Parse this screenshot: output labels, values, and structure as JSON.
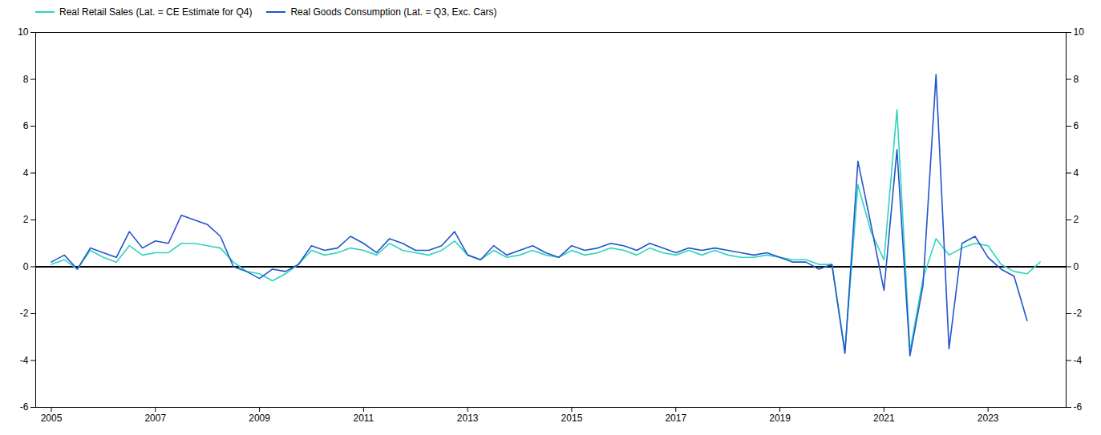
{
  "chart_data": {
    "type": "line",
    "x": [
      2005.0,
      2005.25,
      2005.5,
      2005.75,
      2006.0,
      2006.25,
      2006.5,
      2006.75,
      2007.0,
      2007.25,
      2007.5,
      2007.75,
      2008.0,
      2008.25,
      2008.5,
      2008.75,
      2009.0,
      2009.25,
      2009.5,
      2009.75,
      2010.0,
      2010.25,
      2010.5,
      2010.75,
      2011.0,
      2011.25,
      2011.5,
      2011.75,
      2012.0,
      2012.25,
      2012.5,
      2012.75,
      2013.0,
      2013.25,
      2013.5,
      2013.75,
      2014.0,
      2014.25,
      2014.5,
      2014.75,
      2015.0,
      2015.25,
      2015.5,
      2015.75,
      2016.0,
      2016.25,
      2016.5,
      2016.75,
      2017.0,
      2017.25,
      2017.5,
      2017.75,
      2018.0,
      2018.25,
      2018.5,
      2018.75,
      2019.0,
      2019.25,
      2019.5,
      2019.75,
      2020.0,
      2020.25,
      2020.5,
      2020.75,
      2021.0,
      2021.25,
      2021.5,
      2021.75,
      2022.0,
      2022.25,
      2022.5,
      2022.75,
      2023.0,
      2023.25,
      2023.5,
      2023.75,
      2024.0
    ],
    "series": [
      {
        "name": "Real Retail Sales (Lat. = CE Estimate for Q4)",
        "color": "#2DD4BF",
        "values": [
          0.1,
          0.3,
          -0.1,
          0.7,
          0.4,
          0.2,
          0.9,
          0.5,
          0.6,
          0.6,
          1.0,
          1.0,
          0.9,
          0.8,
          0.2,
          -0.2,
          -0.3,
          -0.6,
          -0.3,
          0.1,
          0.7,
          0.5,
          0.6,
          0.8,
          0.7,
          0.5,
          1.0,
          0.7,
          0.6,
          0.5,
          0.7,
          1.1,
          0.5,
          0.3,
          0.7,
          0.4,
          0.5,
          0.7,
          0.5,
          0.4,
          0.7,
          0.5,
          0.6,
          0.8,
          0.7,
          0.5,
          0.8,
          0.6,
          0.5,
          0.7,
          0.5,
          0.7,
          0.5,
          0.4,
          0.4,
          0.5,
          0.4,
          0.3,
          0.3,
          0.1,
          0.1,
          -3.6,
          3.5,
          1.5,
          0.3,
          6.7,
          -3.6,
          -0.5,
          1.2,
          0.5,
          0.8,
          1.0,
          0.9,
          0.1,
          -0.2,
          -0.3,
          0.2
        ]
      },
      {
        "name": "Real Goods Consumption (Lat. = Q3, Exc. Cars)",
        "color": "#2255CC",
        "values": [
          0.2,
          0.5,
          -0.1,
          0.8,
          0.6,
          0.4,
          1.5,
          0.8,
          1.1,
          1.0,
          2.2,
          2.0,
          1.8,
          1.3,
          0.0,
          -0.2,
          -0.5,
          -0.1,
          -0.2,
          0.1,
          0.9,
          0.7,
          0.8,
          1.3,
          1.0,
          0.6,
          1.2,
          1.0,
          0.7,
          0.7,
          0.9,
          1.5,
          0.5,
          0.3,
          0.9,
          0.5,
          0.7,
          0.9,
          0.6,
          0.4,
          0.9,
          0.7,
          0.8,
          1.0,
          0.9,
          0.7,
          1.0,
          0.8,
          0.6,
          0.8,
          0.7,
          0.8,
          0.7,
          0.6,
          0.5,
          0.6,
          0.4,
          0.2,
          0.2,
          -0.1,
          0.1,
          -3.7,
          4.5,
          1.8,
          -1.0,
          5.0,
          -3.8,
          -0.8,
          8.2,
          -3.5,
          1.0,
          1.3,
          0.4,
          -0.1,
          -0.4,
          -2.3,
          null
        ]
      }
    ],
    "xlim": [
      2004.7,
      2024.5
    ],
    "xticks": [
      2005,
      2007,
      2009,
      2011,
      2013,
      2015,
      2017,
      2019,
      2021,
      2023
    ],
    "ylim": [
      -6,
      10
    ],
    "yticks": [
      -6,
      -4,
      -2,
      0,
      2,
      4,
      6,
      8,
      10
    ],
    "y2lim": [
      -6,
      10
    ],
    "y2ticks": [
      -6,
      -4,
      -2,
      0,
      2,
      4,
      6,
      8,
      10
    ],
    "legend": "upper left",
    "grid": false
  }
}
